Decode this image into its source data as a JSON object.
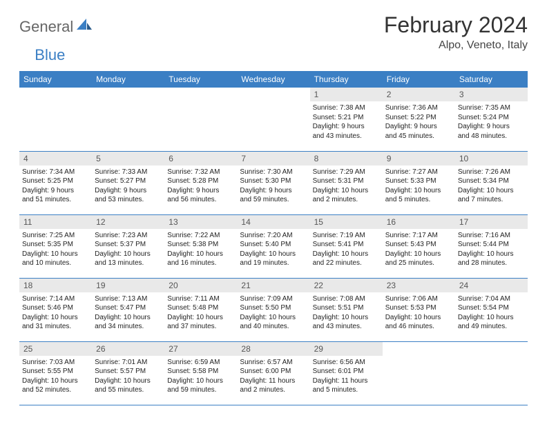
{
  "brand": {
    "part1": "General",
    "part2": "Blue"
  },
  "title": "February 2024",
  "location": "Alpo, Veneto, Italy",
  "colors": {
    "header_bg": "#3b7fc4",
    "header_text": "#ffffff",
    "daynum_bg": "#e9e9e9",
    "daynum_text": "#555555",
    "body_text": "#222222",
    "rule": "#3b7fc4"
  },
  "day_names": [
    "Sunday",
    "Monday",
    "Tuesday",
    "Wednesday",
    "Thursday",
    "Friday",
    "Saturday"
  ],
  "weeks": [
    [
      null,
      null,
      null,
      null,
      {
        "n": "1",
        "sunrise": "7:38 AM",
        "sunset": "5:21 PM",
        "dl1": "9 hours",
        "dl2": "and 43 minutes."
      },
      {
        "n": "2",
        "sunrise": "7:36 AM",
        "sunset": "5:22 PM",
        "dl1": "9 hours",
        "dl2": "and 45 minutes."
      },
      {
        "n": "3",
        "sunrise": "7:35 AM",
        "sunset": "5:24 PM",
        "dl1": "9 hours",
        "dl2": "and 48 minutes."
      }
    ],
    [
      {
        "n": "4",
        "sunrise": "7:34 AM",
        "sunset": "5:25 PM",
        "dl1": "9 hours",
        "dl2": "and 51 minutes."
      },
      {
        "n": "5",
        "sunrise": "7:33 AM",
        "sunset": "5:27 PM",
        "dl1": "9 hours",
        "dl2": "and 53 minutes."
      },
      {
        "n": "6",
        "sunrise": "7:32 AM",
        "sunset": "5:28 PM",
        "dl1": "9 hours",
        "dl2": "and 56 minutes."
      },
      {
        "n": "7",
        "sunrise": "7:30 AM",
        "sunset": "5:30 PM",
        "dl1": "9 hours",
        "dl2": "and 59 minutes."
      },
      {
        "n": "8",
        "sunrise": "7:29 AM",
        "sunset": "5:31 PM",
        "dl1": "10 hours",
        "dl2": "and 2 minutes."
      },
      {
        "n": "9",
        "sunrise": "7:27 AM",
        "sunset": "5:33 PM",
        "dl1": "10 hours",
        "dl2": "and 5 minutes."
      },
      {
        "n": "10",
        "sunrise": "7:26 AM",
        "sunset": "5:34 PM",
        "dl1": "10 hours",
        "dl2": "and 7 minutes."
      }
    ],
    [
      {
        "n": "11",
        "sunrise": "7:25 AM",
        "sunset": "5:35 PM",
        "dl1": "10 hours",
        "dl2": "and 10 minutes."
      },
      {
        "n": "12",
        "sunrise": "7:23 AM",
        "sunset": "5:37 PM",
        "dl1": "10 hours",
        "dl2": "and 13 minutes."
      },
      {
        "n": "13",
        "sunrise": "7:22 AM",
        "sunset": "5:38 PM",
        "dl1": "10 hours",
        "dl2": "and 16 minutes."
      },
      {
        "n": "14",
        "sunrise": "7:20 AM",
        "sunset": "5:40 PM",
        "dl1": "10 hours",
        "dl2": "and 19 minutes."
      },
      {
        "n": "15",
        "sunrise": "7:19 AM",
        "sunset": "5:41 PM",
        "dl1": "10 hours",
        "dl2": "and 22 minutes."
      },
      {
        "n": "16",
        "sunrise": "7:17 AM",
        "sunset": "5:43 PM",
        "dl1": "10 hours",
        "dl2": "and 25 minutes."
      },
      {
        "n": "17",
        "sunrise": "7:16 AM",
        "sunset": "5:44 PM",
        "dl1": "10 hours",
        "dl2": "and 28 minutes."
      }
    ],
    [
      {
        "n": "18",
        "sunrise": "7:14 AM",
        "sunset": "5:46 PM",
        "dl1": "10 hours",
        "dl2": "and 31 minutes."
      },
      {
        "n": "19",
        "sunrise": "7:13 AM",
        "sunset": "5:47 PM",
        "dl1": "10 hours",
        "dl2": "and 34 minutes."
      },
      {
        "n": "20",
        "sunrise": "7:11 AM",
        "sunset": "5:48 PM",
        "dl1": "10 hours",
        "dl2": "and 37 minutes."
      },
      {
        "n": "21",
        "sunrise": "7:09 AM",
        "sunset": "5:50 PM",
        "dl1": "10 hours",
        "dl2": "and 40 minutes."
      },
      {
        "n": "22",
        "sunrise": "7:08 AM",
        "sunset": "5:51 PM",
        "dl1": "10 hours",
        "dl2": "and 43 minutes."
      },
      {
        "n": "23",
        "sunrise": "7:06 AM",
        "sunset": "5:53 PM",
        "dl1": "10 hours",
        "dl2": "and 46 minutes."
      },
      {
        "n": "24",
        "sunrise": "7:04 AM",
        "sunset": "5:54 PM",
        "dl1": "10 hours",
        "dl2": "and 49 minutes."
      }
    ],
    [
      {
        "n": "25",
        "sunrise": "7:03 AM",
        "sunset": "5:55 PM",
        "dl1": "10 hours",
        "dl2": "and 52 minutes."
      },
      {
        "n": "26",
        "sunrise": "7:01 AM",
        "sunset": "5:57 PM",
        "dl1": "10 hours",
        "dl2": "and 55 minutes."
      },
      {
        "n": "27",
        "sunrise": "6:59 AM",
        "sunset": "5:58 PM",
        "dl1": "10 hours",
        "dl2": "and 59 minutes."
      },
      {
        "n": "28",
        "sunrise": "6:57 AM",
        "sunset": "6:00 PM",
        "dl1": "11 hours",
        "dl2": "and 2 minutes."
      },
      {
        "n": "29",
        "sunrise": "6:56 AM",
        "sunset": "6:01 PM",
        "dl1": "11 hours",
        "dl2": "and 5 minutes."
      },
      null,
      null
    ]
  ]
}
